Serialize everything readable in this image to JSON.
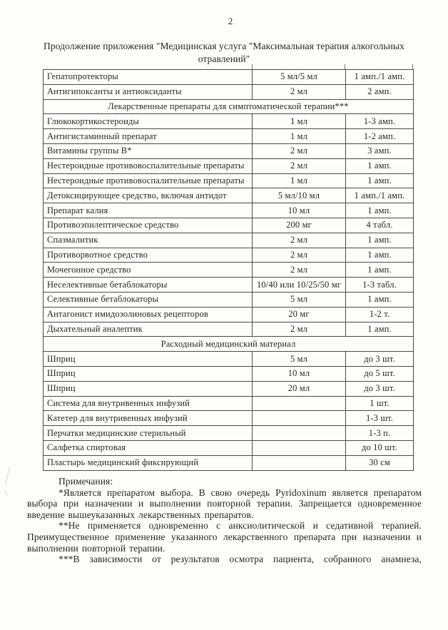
{
  "page": {
    "number": "2",
    "title_line1": "Продолжение приложения \"Медицинская услуга \"Максимальная терапия алкогольных",
    "title_line2": "отравлений\""
  },
  "table": {
    "rows": [
      {
        "name": "Гепатопротекторы",
        "dose": "5 мл/5 мл",
        "qty": "1 амп./1 амп."
      },
      {
        "name": "Антигипоксанты и антиоксиданты",
        "dose": "2 мл",
        "qty": "2 амп."
      },
      {
        "section": "Лекарственные препараты для симптоматической терапии***"
      },
      {
        "name": "Глюкокортикостероиды",
        "dose": "1 мл",
        "qty": "1-3 амп."
      },
      {
        "name": "Антигистаминный препарат",
        "dose": "1 мл",
        "qty": "1-2 амп."
      },
      {
        "name": "Витамины группы В*",
        "dose": "2 мл",
        "qty": "3 амп."
      },
      {
        "name": "Нестероидные противовоспалительные препараты",
        "dose": "2 мл",
        "qty": "1 амп."
      },
      {
        "name": "Нестероидные противовоспалительные препараты",
        "dose": "1 мл",
        "qty": "1 амп."
      },
      {
        "name": "Детоксицирующее средство, включая антидот",
        "dose": "5 мл/10 мл",
        "qty": "1 амп./1 амп."
      },
      {
        "name": "Препарат калия",
        "dose": "10 мл",
        "qty": "1 амп."
      },
      {
        "name": "Противоэпилептическое средство",
        "dose": "200 мг",
        "qty": "4 табл."
      },
      {
        "name": "Спазмалитик",
        "dose": "2 мл",
        "qty": "1 амп."
      },
      {
        "name": "Противорвотное средство",
        "dose": "2 мл",
        "qty": "1 амп."
      },
      {
        "name": "Мочегонное средство",
        "dose": "2 мл",
        "qty": "1 амп."
      },
      {
        "name": "Неселективные бетаблокаторы",
        "dose": "10/40 или 10/25/50 мг",
        "qty": "1-3 табл."
      },
      {
        "name": "Селективные бетаблокаторы",
        "dose": "5 мл",
        "qty": "1 амп."
      },
      {
        "name": "Антагонист имидозолиновых рецепторов",
        "dose": "20 мг",
        "qty": "1-2 т."
      },
      {
        "name": "Дыхательный аналептик",
        "dose": "2 мл",
        "qty": "1 амп."
      },
      {
        "section": "Расходный медицинский материал"
      },
      {
        "name": "Шприц",
        "dose": "5 мл",
        "qty": "до 3 шт."
      },
      {
        "name": "Шприц",
        "dose": "10 мл",
        "qty": "до 5 шт."
      },
      {
        "name": "Шприц",
        "dose": "20 мл",
        "qty": "до 3 шт."
      },
      {
        "name": "Система для внутривенных инфузий",
        "dose": "",
        "qty": "1 шт."
      },
      {
        "name": "Катетер для внутривенных инфузий",
        "dose": "",
        "qty": "1-3 шт."
      },
      {
        "name": "Перчатки медицинские стерильный",
        "dose": "",
        "qty": "1-3 п."
      },
      {
        "name": "Салфетка спиртовая",
        "dose": "",
        "qty": "до 10 шт."
      },
      {
        "name": "Пластырь медицинский фиксирующий",
        "dose": "",
        "qty": "30 см"
      }
    ]
  },
  "notes": {
    "heading": "Примечания:",
    "paragraphs": [
      "*Является препаратом выбора. В свою очередь Pyridoxinum является препаратом выбора при назначении и выполнении повторной терапии. Запрещается одновременное введение вышеуказанных лекарственных препаратов.",
      "**Не применяется одновременно с анксиолитической и седативной терапией. Преимущественное применение указанного лекарственного препарата при назначении и выполнении повторной терапии.",
      "***В зависимости от результатов осмотра пациента, собранного анамнеза,"
    ]
  }
}
